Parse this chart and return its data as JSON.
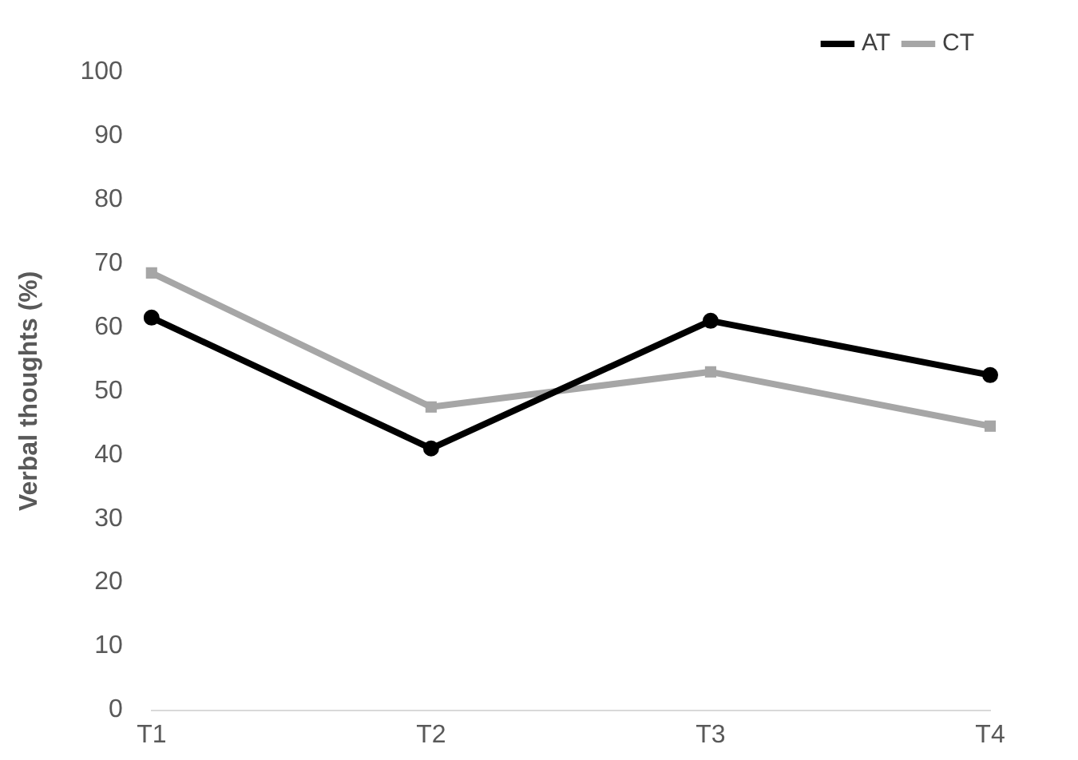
{
  "chart_data": {
    "type": "line",
    "ylabel": "Verbal thoughts (%)",
    "categories": [
      "T1",
      "T2",
      "T3",
      "T4"
    ],
    "series": [
      {
        "name": "AT",
        "color": "#000000",
        "values": [
          61.5,
          41,
          61,
          52.5
        ],
        "marker": "circle"
      },
      {
        "name": "CT",
        "color": "#a6a6a6",
        "values": [
          68.5,
          47.5,
          53,
          44.5
        ],
        "marker": "square"
      }
    ],
    "ylim": [
      0,
      100
    ],
    "yticks": [
      0,
      10,
      20,
      30,
      40,
      50,
      60,
      70,
      80,
      90,
      100
    ],
    "grid": false,
    "legend": "top right"
  }
}
